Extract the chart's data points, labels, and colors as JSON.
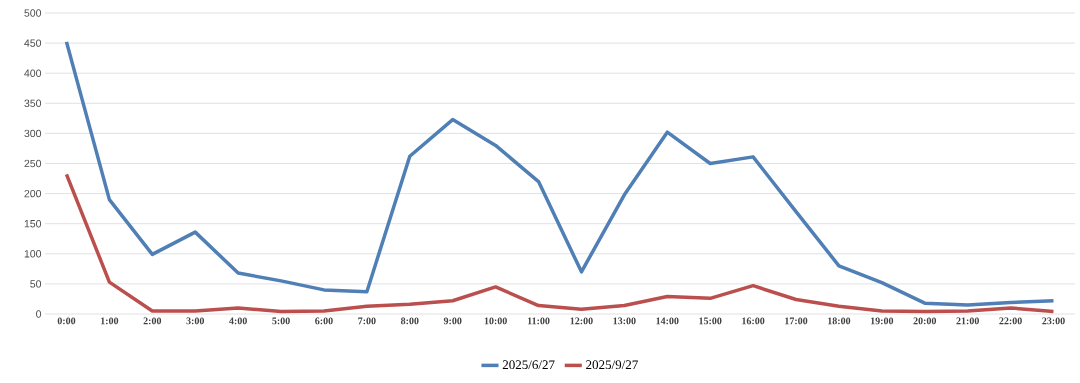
{
  "chart_data": {
    "type": "line",
    "categories": [
      "0:00",
      "1:00",
      "2:00",
      "3:00",
      "4:00",
      "5:00",
      "6:00",
      "7:00",
      "8:00",
      "9:00",
      "10:00",
      "11:00",
      "12:00",
      "13:00",
      "14:00",
      "15:00",
      "16:00",
      "17:00",
      "18:00",
      "19:00",
      "20:00",
      "21:00",
      "22:00",
      "23:00"
    ],
    "series": [
      {
        "name": "2025/6/27",
        "color": "#4f7fb5",
        "values": [
          452,
          190,
          99,
          136,
          68,
          55,
          40,
          37,
          262,
          323,
          280,
          220,
          70,
          198,
          302,
          250,
          261,
          170,
          80,
          52,
          18,
          15,
          19,
          22
        ]
      },
      {
        "name": "2025/9/27",
        "color": "#bb4f4d",
        "values": [
          232,
          53,
          5,
          5,
          10,
          4,
          5,
          13,
          16,
          22,
          45,
          14,
          8,
          14,
          29,
          26,
          47,
          24,
          13,
          5,
          4,
          5,
          10,
          4
        ]
      }
    ],
    "ylim": [
      0,
      500
    ],
    "yticks": [
      0,
      50,
      100,
      150,
      200,
      250,
      300,
      350,
      400,
      450,
      500
    ],
    "grid": "y",
    "legend": "bottom",
    "marker": "none",
    "line_style": "solid"
  }
}
